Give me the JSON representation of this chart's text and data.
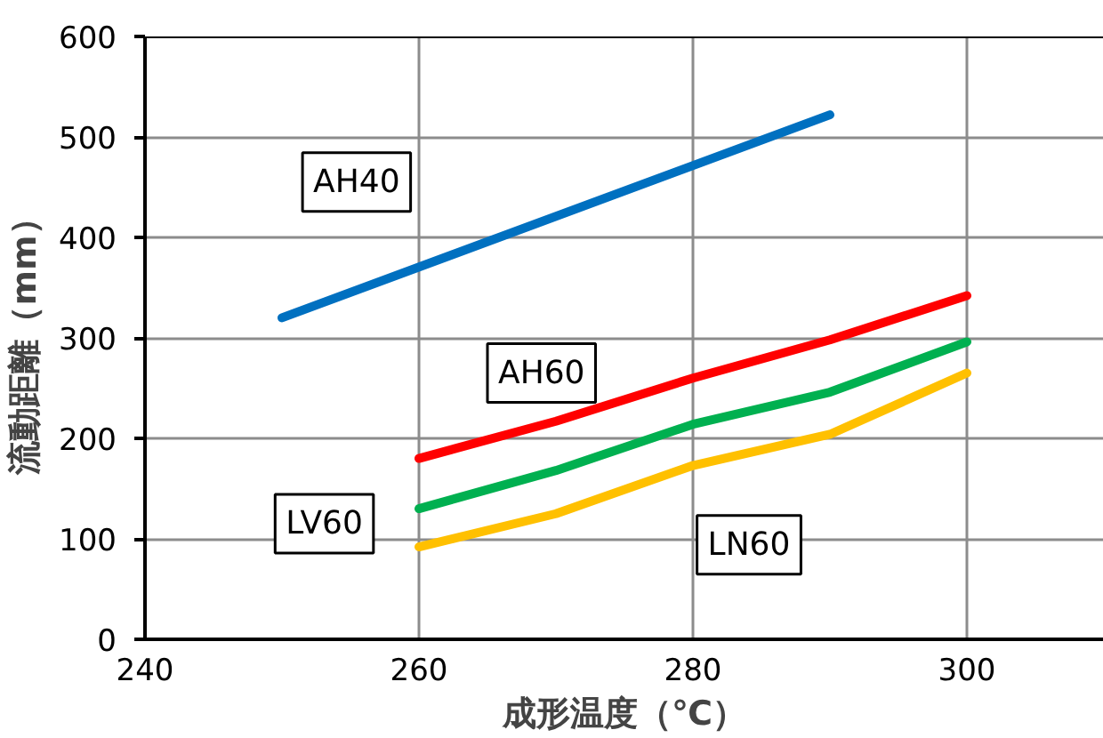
{
  "chart_data": {
    "type": "line",
    "xlabel": "成形温度（℃）",
    "ylabel": "流動距離（mm）",
    "xlim": [
      240,
      310
    ],
    "xticks": [
      240,
      260,
      280,
      300
    ],
    "ylim": [
      0,
      600
    ],
    "yticks": [
      0,
      100,
      200,
      300,
      400,
      500,
      600
    ],
    "grid": true,
    "marker": "none",
    "line_style": "solid",
    "series": [
      {
        "name": "AH40",
        "color": "#0070c0",
        "x": [
          250,
          290
        ],
        "values": [
          320,
          522
        ]
      },
      {
        "name": "AH60",
        "color": "#ff0000",
        "x": [
          260,
          270,
          280,
          290,
          300
        ],
        "values": [
          180,
          217,
          260,
          298,
          342
        ]
      },
      {
        "name": "LV60",
        "color": "#00b050",
        "x": [
          260,
          270,
          280,
          290,
          300
        ],
        "values": [
          130,
          168,
          214,
          246,
          296
        ]
      },
      {
        "name": "LN60",
        "color": "#ffc000",
        "x": [
          260,
          270,
          280,
          290,
          300
        ],
        "values": [
          92,
          125,
          173,
          204,
          265
        ]
      }
    ]
  }
}
